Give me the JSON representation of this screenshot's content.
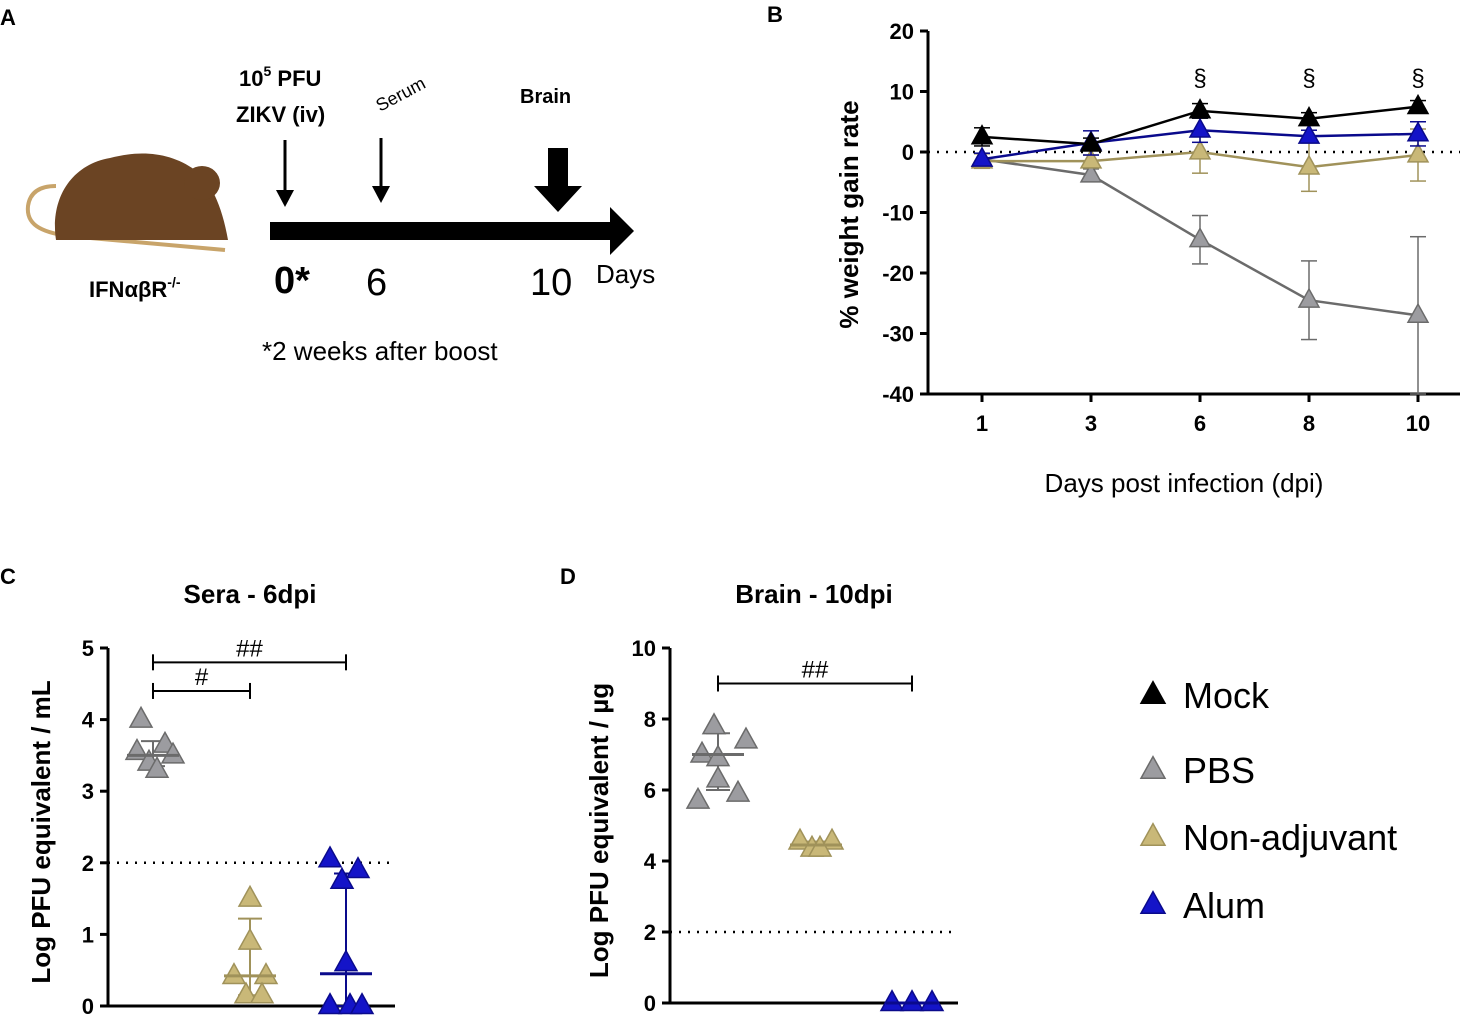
{
  "colors": {
    "mock": "#000000",
    "pbs": "#9c9ca0",
    "pbs_line": "#6b6b6b",
    "non_adjuvant": "#c9b878",
    "non_adjuvant_line": "#a0925a",
    "alum": "#1414c8",
    "alum_line": "#0a0a8c",
    "mouse_body": "#6b4423",
    "mouse_tail": "#c8a46a"
  },
  "panel_a": {
    "letter": "A",
    "mouse_label": "IFNαβR",
    "mouse_label_sup": "-/-",
    "dose_line1_base": "10",
    "dose_line1_sup": "5",
    "dose_line1_tail": " PFU",
    "dose_line2": "ZIKV (iv)",
    "serum_label": "Serum",
    "brain_label": "Brain",
    "day0": "0*",
    "day6": "6",
    "day10": "10",
    "days_word": "Days",
    "footnote": "*2 weeks after boost"
  },
  "legend": [
    {
      "key": "mock",
      "label": "Mock"
    },
    {
      "key": "pbs",
      "label": "PBS"
    },
    {
      "key": "non_adjuvant",
      "label": "Non-adjuvant"
    },
    {
      "key": "alum",
      "label": "Alum"
    }
  ],
  "chart_data": [
    {
      "panel": "B",
      "type": "line",
      "title": "",
      "xlabel": "Days post infection (dpi)",
      "ylabel": "% weight gain rate",
      "categories": [
        "1",
        "3",
        "6",
        "8",
        "10"
      ],
      "yticks": [
        20,
        10,
        0,
        -10,
        -20,
        -30,
        -40
      ],
      "ylim": [
        -40,
        20
      ],
      "reference_line": 0,
      "significance": [
        {
          "category": "6",
          "symbol": "§"
        },
        {
          "category": "8",
          "symbol": "§"
        },
        {
          "category": "10",
          "symbol": "§"
        }
      ],
      "series": [
        {
          "name": "PBS",
          "key": "pbs",
          "values": [
            -1.2,
            -3.8,
            -14.5,
            -24.5,
            -27
          ],
          "err": [
            1,
            1,
            4,
            6.5,
            13
          ]
        },
        {
          "name": "Non-adjuvant",
          "key": "non_adjuvant",
          "values": [
            -1.5,
            -1.5,
            0,
            -2.5,
            -0.5
          ],
          "err": [
            1.2,
            1,
            3.5,
            4,
            4.3
          ]
        },
        {
          "name": "Alum",
          "key": "alum",
          "values": [
            -1.2,
            1.5,
            3.6,
            2.6,
            3
          ],
          "err": [
            1,
            2,
            2,
            1,
            2
          ]
        },
        {
          "name": "Mock",
          "key": "mock",
          "values": [
            2.5,
            1.3,
            6.8,
            5.5,
            7.5
          ],
          "err": [
            1.5,
            1,
            1.2,
            1,
            1
          ]
        }
      ]
    },
    {
      "panel": "C",
      "type": "scatter",
      "title": "Sera - 6dpi",
      "ylabel": "Log PFU equivalent / mL",
      "yticks": [
        0,
        1,
        2,
        3,
        4,
        5
      ],
      "ylim": [
        0,
        5
      ],
      "limit_of_detection": 2,
      "comparisons": [
        {
          "from": "PBS",
          "to": "Non-adjuvant",
          "symbol": "#",
          "y": 4.4
        },
        {
          "from": "PBS",
          "to": "Alum",
          "symbol": "##",
          "y": 4.8
        }
      ],
      "groups": [
        {
          "name": "PBS",
          "key": "pbs",
          "median": 3.5,
          "q1": 3.35,
          "q3": 3.7,
          "points": [
            {
              "offset": -0.15,
              "y": 4.0
            },
            {
              "offset": 0.15,
              "y": 3.65
            },
            {
              "offset": -0.2,
              "y": 3.55
            },
            {
              "offset": 0.25,
              "y": 3.5
            },
            {
              "offset": -0.05,
              "y": 3.4
            },
            {
              "offset": 0.05,
              "y": 3.3
            }
          ]
        },
        {
          "name": "Non-adjuvant",
          "key": "non_adjuvant",
          "median": 0.42,
          "q1": 0.15,
          "q3": 1.22,
          "points": [
            {
              "offset": 0.0,
              "y": 1.5
            },
            {
              "offset": 0.0,
              "y": 0.9
            },
            {
              "offset": -0.2,
              "y": 0.42
            },
            {
              "offset": 0.2,
              "y": 0.42
            },
            {
              "offset": -0.05,
              "y": 0.15
            },
            {
              "offset": 0.15,
              "y": 0.15
            }
          ]
        },
        {
          "name": "Alum",
          "key": "alum",
          "median": 0.45,
          "q1": 0.0,
          "q3": 1.85,
          "points": [
            {
              "offset": -0.2,
              "y": 2.05
            },
            {
              "offset": 0.15,
              "y": 1.9
            },
            {
              "offset": -0.05,
              "y": 1.75
            },
            {
              "offset": 0.0,
              "y": 0.6
            },
            {
              "offset": -0.2,
              "y": 0.0
            },
            {
              "offset": 0.05,
              "y": 0.0
            },
            {
              "offset": 0.2,
              "y": 0.0
            }
          ]
        }
      ]
    },
    {
      "panel": "D",
      "type": "scatter",
      "title": "Brain - 10dpi",
      "ylabel": "Log PFU equivalent / µg",
      "yticks": [
        0,
        2,
        4,
        6,
        8,
        10
      ],
      "ylim": [
        0,
        10
      ],
      "limit_of_detection": 2,
      "comparisons": [
        {
          "from": "PBS",
          "to": "Alum",
          "symbol": "##",
          "y": 9.0
        }
      ],
      "groups": [
        {
          "name": "PBS",
          "key": "pbs",
          "median": 7.0,
          "q1": 6.0,
          "q3": 7.6,
          "points": [
            {
              "offset": -0.05,
              "y": 7.8
            },
            {
              "offset": 0.35,
              "y": 7.4
            },
            {
              "offset": -0.2,
              "y": 7.0
            },
            {
              "offset": 0.0,
              "y": 6.9
            },
            {
              "offset": 0.0,
              "y": 6.3
            },
            {
              "offset": -0.25,
              "y": 5.7
            },
            {
              "offset": 0.25,
              "y": 5.9
            }
          ]
        },
        {
          "name": "Non-adjuvant",
          "key": "non_adjuvant",
          "median": 4.45,
          "q1": 4.35,
          "q3": 4.55,
          "points": [
            {
              "offset": -0.2,
              "y": 4.55
            },
            {
              "offset": 0.2,
              "y": 4.55
            },
            {
              "offset": -0.05,
              "y": 4.35
            },
            {
              "offset": 0.05,
              "y": 4.35
            }
          ]
        },
        {
          "name": "Alum",
          "key": "alum",
          "median": 0,
          "q1": 0,
          "q3": 0,
          "points": [
            {
              "offset": -0.25,
              "y": 0
            },
            {
              "offset": 0.0,
              "y": 0
            },
            {
              "offset": 0.25,
              "y": 0
            }
          ]
        }
      ]
    }
  ]
}
